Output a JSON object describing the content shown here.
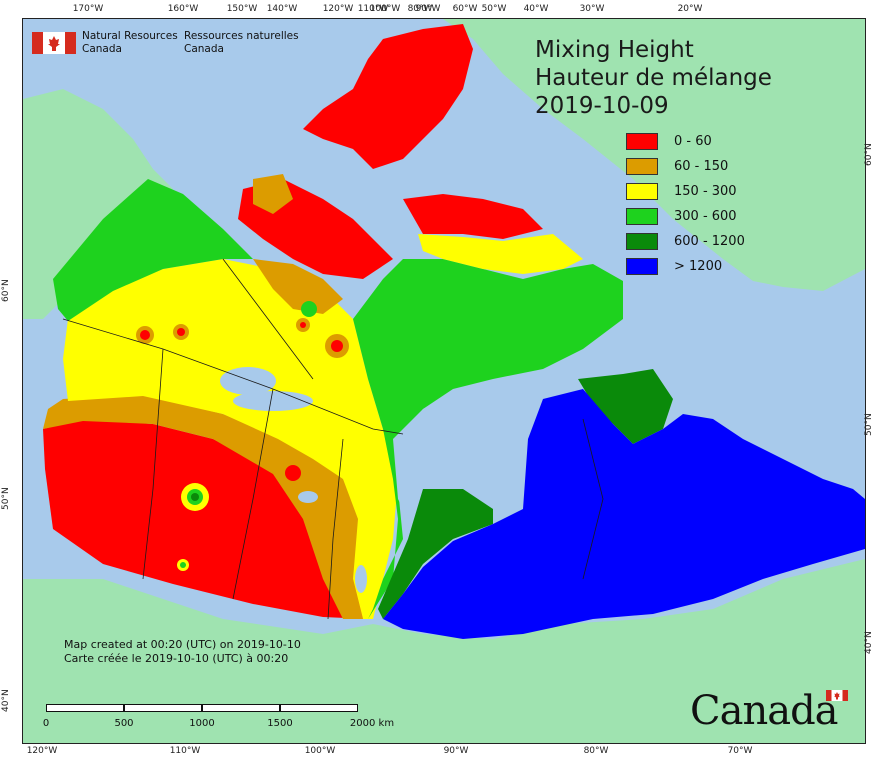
{
  "org": {
    "en_line1": "Natural Resources",
    "en_line2": "Canada",
    "fr_line1": "Ressources naturelles",
    "fr_line2": "Canada"
  },
  "title": {
    "line1": "Mixing Height",
    "line2": "Hauteur de mélange",
    "date": "2019-10-09"
  },
  "legend": [
    {
      "label": "0 - 60",
      "color": "#ff0000"
    },
    {
      "label": "60 - 150",
      "color": "#dc9c00"
    },
    {
      "label": "150 - 300",
      "color": "#ffff00"
    },
    {
      "label": "300 - 600",
      "color": "#1ed21e"
    },
    {
      "label": "600 - 1200",
      "color": "#0a8a0a"
    },
    {
      "label": "> 1200",
      "color": "#0000ff"
    }
  ],
  "credit": {
    "line1": "Map created at 00:20 (UTC) on 2019-10-10",
    "line2": "Carte créée le 2019-10-10 (UTC) à 00:20"
  },
  "scale": {
    "labels": [
      "0",
      "500",
      "1000",
      "1500",
      "2000 km"
    ]
  },
  "ticks": {
    "top": [
      "170°W",
      "160°W",
      "150°W",
      "140°W",
      "120°W",
      "110°W",
      "100°W",
      "90°W",
      "80°W",
      "60°W",
      "50°W",
      "40°W",
      "30°W",
      "20°W"
    ],
    "bottom": [
      "120°W",
      "110°W",
      "100°W",
      "90°W",
      "80°W",
      "70°W"
    ],
    "left": [
      "60°N",
      "50°N",
      "40°N"
    ],
    "right": [
      "60°N",
      "50°N",
      "40°N"
    ]
  },
  "wordmark": "Canada",
  "colors": {
    "ocean": "#a8caeb",
    "foreign_land": "#9fe3b0",
    "border": "#1a1a1a"
  }
}
